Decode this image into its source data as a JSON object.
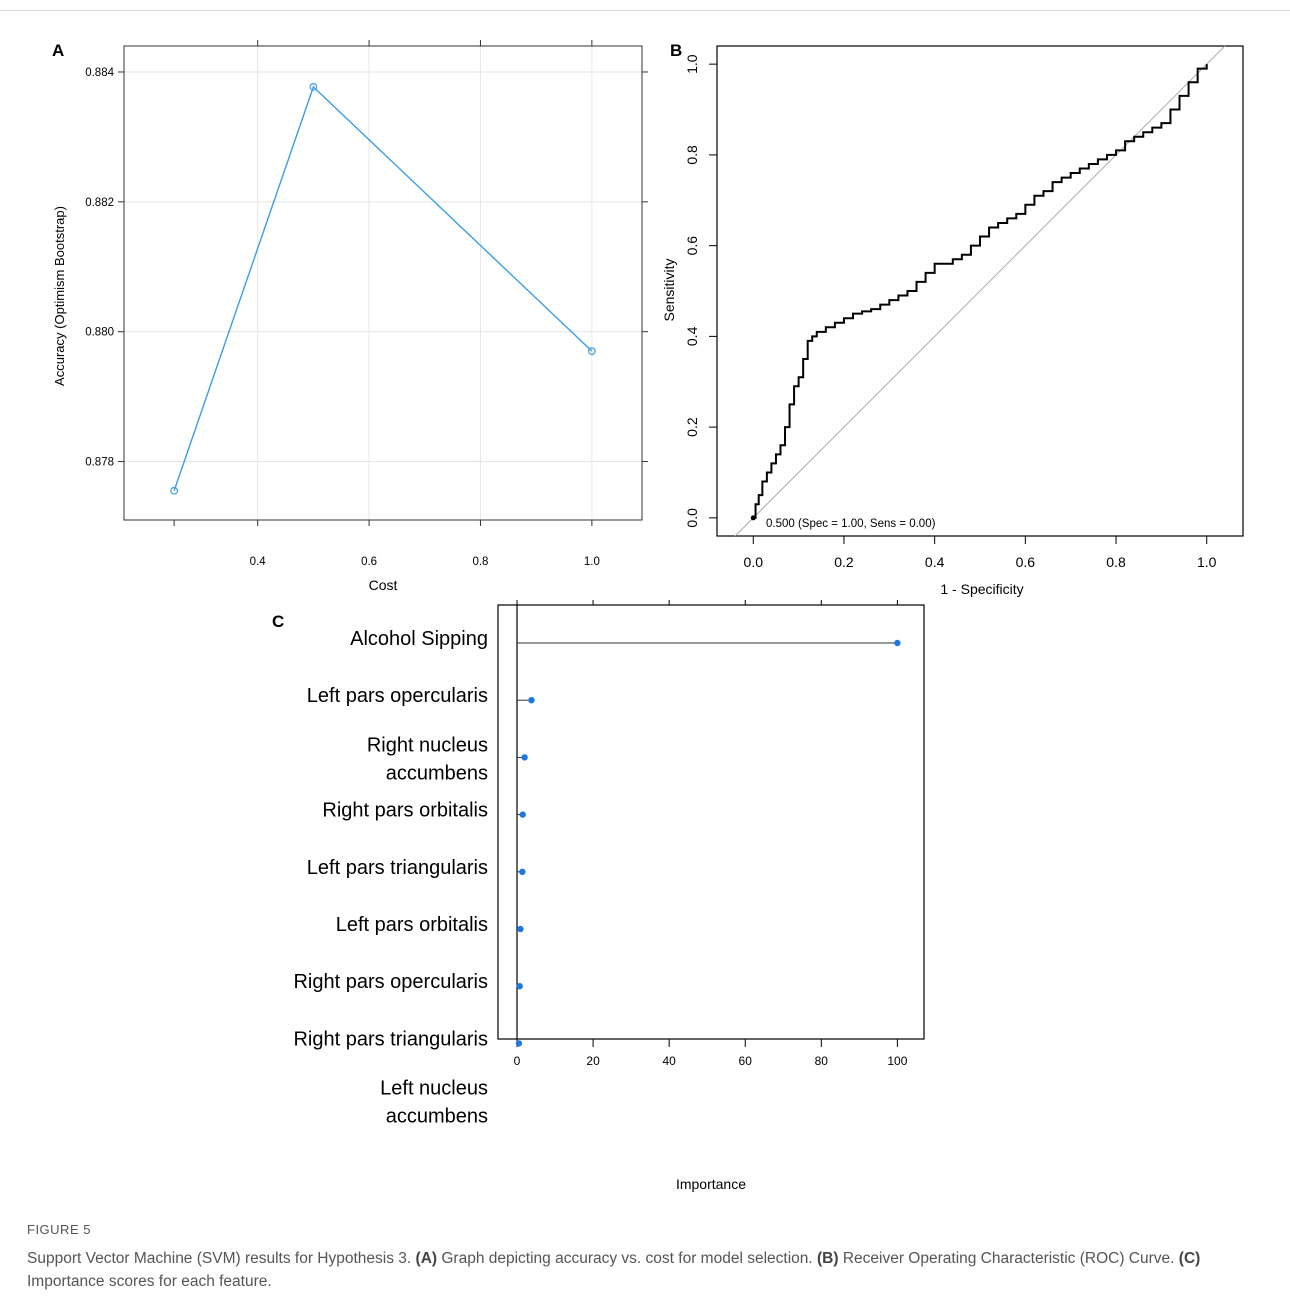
{
  "panels": {
    "A": {
      "letter": "A",
      "chart_data": {
        "type": "line",
        "xlabel": "Cost",
        "ylabel": "Accuracy (Optimism Bootstrap)",
        "x": [
          0.25,
          0.5,
          1.0
        ],
        "y": [
          0.87755,
          0.88377,
          0.8797
        ],
        "xlim": [
          0.16,
          1.09
        ],
        "ylim": [
          0.8771,
          0.8844
        ],
        "xticks": [
          0.4,
          0.6,
          0.8,
          1.0
        ],
        "xtick_labels": [
          "0.4",
          "0.6",
          "0.8",
          "1.0"
        ],
        "yticks": [
          0.878,
          0.88,
          0.882,
          0.884
        ],
        "ytick_labels": [
          "0.878",
          "0.880",
          "0.882",
          "0.884"
        ],
        "grid": true,
        "color": "#3a9ee6"
      }
    },
    "B": {
      "letter": "B",
      "chart_data": {
        "type": "line",
        "xlabel": "1 - Specificity",
        "ylabel": "Sensitivity",
        "xlim": [
          -0.08,
          1.08
        ],
        "ylim": [
          -0.04,
          1.04
        ],
        "xticks": [
          0.0,
          0.2,
          0.4,
          0.6,
          0.8,
          1.0
        ],
        "xtick_labels": [
          "0.0",
          "0.2",
          "0.4",
          "0.6",
          "0.8",
          "1.0"
        ],
        "yticks": [
          0.0,
          0.2,
          0.4,
          0.6,
          0.8,
          1.0
        ],
        "ytick_labels": [
          "0.0",
          "0.2",
          "0.4",
          "0.6",
          "0.8",
          "1.0"
        ],
        "diagonal": true,
        "annotation": "0.500 (Spec = 1.00, Sens = 0.00)",
        "roc_x": [
          0.0,
          0.005,
          0.012,
          0.02,
          0.03,
          0.04,
          0.05,
          0.06,
          0.07,
          0.08,
          0.09,
          0.1,
          0.11,
          0.12,
          0.13,
          0.14,
          0.16,
          0.18,
          0.2,
          0.22,
          0.24,
          0.26,
          0.28,
          0.3,
          0.32,
          0.34,
          0.36,
          0.38,
          0.4,
          0.44,
          0.46,
          0.48,
          0.5,
          0.52,
          0.54,
          0.56,
          0.58,
          0.6,
          0.62,
          0.64,
          0.66,
          0.68,
          0.7,
          0.72,
          0.74,
          0.76,
          0.78,
          0.8,
          0.82,
          0.84,
          0.86,
          0.88,
          0.9,
          0.92,
          0.94,
          0.96,
          0.98,
          1.0
        ],
        "roc_y": [
          0.0,
          0.03,
          0.05,
          0.08,
          0.1,
          0.12,
          0.14,
          0.16,
          0.2,
          0.25,
          0.29,
          0.31,
          0.35,
          0.39,
          0.4,
          0.41,
          0.42,
          0.43,
          0.44,
          0.45,
          0.455,
          0.46,
          0.47,
          0.48,
          0.49,
          0.5,
          0.52,
          0.54,
          0.56,
          0.57,
          0.58,
          0.6,
          0.62,
          0.64,
          0.65,
          0.66,
          0.67,
          0.69,
          0.71,
          0.72,
          0.74,
          0.75,
          0.76,
          0.77,
          0.78,
          0.79,
          0.8,
          0.81,
          0.83,
          0.84,
          0.85,
          0.86,
          0.87,
          0.9,
          0.93,
          0.96,
          0.99,
          1.0
        ]
      }
    },
    "C": {
      "letter": "C",
      "chart_data": {
        "type": "dot",
        "xlabel": "Importance",
        "xlim": [
          -5,
          107
        ],
        "xticks": [
          0,
          20,
          40,
          60,
          80,
          100
        ],
        "xtick_labels": [
          "0",
          "20",
          "40",
          "60",
          "80",
          "100"
        ],
        "categories": [
          [
            "Alcohol Sipping"
          ],
          [
            "Left pars opercularis"
          ],
          [
            "Right nucleus",
            "accumbens"
          ],
          [
            "Right pars orbitalis"
          ],
          [
            "Left pars triangularis"
          ],
          [
            "Left pars orbitalis"
          ],
          [
            "Right pars opercularis"
          ],
          [
            "Right pars triangularis"
          ],
          [
            "Left nucleus",
            "accumbens"
          ]
        ],
        "values": [
          100,
          3.8,
          2.0,
          1.5,
          1.4,
          0.9,
          0.7,
          0.5,
          null
        ],
        "color": "#1f78e0"
      }
    }
  },
  "caption": {
    "label": "FIGURE 5",
    "prefix": "Support Vector Machine (SVM) results for Hypothesis 3. ",
    "a_tag": "(A)",
    "a_text": " Graph depicting accuracy vs. cost for model selection. ",
    "b_tag": "(B)",
    "b_text": " Receiver Operating Characteristic (ROC) Curve. ",
    "c_tag": "(C)",
    "c_text": " Importance scores for each feature."
  }
}
